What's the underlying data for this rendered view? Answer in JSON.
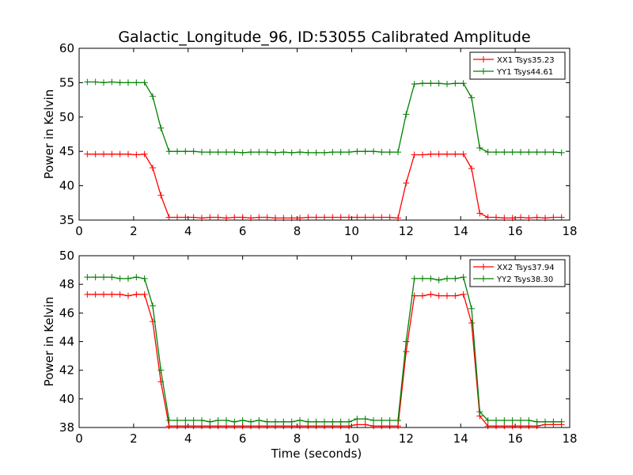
{
  "figure": {
    "title": "Galactic_Longitude_96, ID:53055 Calibrated Amplitude"
  },
  "chart_data": [
    {
      "type": "line",
      "ylabel": "Power in Kelvin",
      "xlabel": "",
      "xlim": [
        0,
        18
      ],
      "ylim": [
        35,
        60
      ],
      "x_ticks": [
        "0",
        "2",
        "4",
        "6",
        "8",
        "10",
        "12",
        "14",
        "16",
        "18"
      ],
      "y_ticks": [
        "35",
        "40",
        "45",
        "50",
        "55",
        "60"
      ],
      "legend_position": "top-right",
      "x": [
        0.3,
        0.6,
        0.9,
        1.2,
        1.5,
        1.8,
        2.1,
        2.4,
        2.7,
        3.0,
        3.3,
        3.6,
        3.9,
        4.2,
        4.5,
        4.8,
        5.1,
        5.4,
        5.7,
        6.0,
        6.3,
        6.6,
        6.9,
        7.2,
        7.5,
        7.8,
        8.1,
        8.4,
        8.7,
        9.0,
        9.3,
        9.6,
        9.9,
        10.2,
        10.5,
        10.8,
        11.1,
        11.4,
        11.7,
        12.0,
        12.3,
        12.6,
        12.9,
        13.2,
        13.5,
        13.8,
        14.1,
        14.4,
        14.7,
        15.0,
        15.3,
        15.6,
        15.9,
        16.2,
        16.5,
        16.8,
        17.1,
        17.4,
        17.7
      ],
      "series": [
        {
          "name": "XX1 Tsys35.23",
          "color": "#ff0000",
          "values": [
            44.6,
            44.6,
            44.6,
            44.6,
            44.6,
            44.6,
            44.5,
            44.6,
            42.6,
            38.6,
            35.4,
            35.4,
            35.4,
            35.4,
            35.3,
            35.4,
            35.4,
            35.3,
            35.4,
            35.4,
            35.3,
            35.4,
            35.4,
            35.3,
            35.3,
            35.3,
            35.3,
            35.4,
            35.4,
            35.4,
            35.4,
            35.4,
            35.4,
            35.4,
            35.4,
            35.4,
            35.4,
            35.4,
            35.3,
            40.4,
            44.5,
            44.5,
            44.6,
            44.6,
            44.6,
            44.6,
            44.6,
            42.5,
            36.0,
            35.4,
            35.4,
            35.3,
            35.3,
            35.4,
            35.3,
            35.4,
            35.3,
            35.4,
            35.4
          ]
        },
        {
          "name": "YY1 Tsys44.61",
          "color": "#008000",
          "values": [
            55.1,
            55.1,
            55.0,
            55.1,
            55.0,
            55.0,
            55.0,
            55.0,
            53.0,
            48.4,
            45.0,
            45.0,
            45.0,
            45.0,
            44.9,
            44.9,
            44.9,
            44.9,
            44.9,
            44.8,
            44.9,
            44.9,
            44.9,
            44.8,
            44.9,
            44.8,
            44.9,
            44.8,
            44.8,
            44.8,
            44.9,
            44.9,
            44.9,
            45.0,
            45.0,
            45.0,
            44.9,
            44.9,
            44.9,
            50.4,
            54.8,
            54.9,
            54.9,
            54.9,
            54.8,
            54.9,
            54.9,
            52.8,
            45.5,
            44.9,
            44.9,
            44.9,
            44.9,
            44.9,
            44.9,
            44.9,
            44.9,
            44.9,
            44.8
          ]
        }
      ]
    },
    {
      "type": "line",
      "ylabel": "Power in Kelvin",
      "xlabel": "Time (seconds)",
      "xlim": [
        0,
        18
      ],
      "ylim": [
        38,
        50
      ],
      "x_ticks": [
        "0",
        "2",
        "4",
        "6",
        "8",
        "10",
        "12",
        "14",
        "16",
        "18"
      ],
      "y_ticks": [
        "38",
        "40",
        "42",
        "44",
        "46",
        "48",
        "50"
      ],
      "legend_position": "top-right",
      "x": [
        0.3,
        0.6,
        0.9,
        1.2,
        1.5,
        1.8,
        2.1,
        2.4,
        2.7,
        3.0,
        3.3,
        3.6,
        3.9,
        4.2,
        4.5,
        4.8,
        5.1,
        5.4,
        5.7,
        6.0,
        6.3,
        6.6,
        6.9,
        7.2,
        7.5,
        7.8,
        8.1,
        8.4,
        8.7,
        9.0,
        9.3,
        9.6,
        9.9,
        10.2,
        10.5,
        10.8,
        11.1,
        11.4,
        11.7,
        12.0,
        12.3,
        12.6,
        12.9,
        13.2,
        13.5,
        13.8,
        14.1,
        14.4,
        14.7,
        15.0,
        15.3,
        15.6,
        15.9,
        16.2,
        16.5,
        16.8,
        17.1,
        17.4,
        17.7
      ],
      "series": [
        {
          "name": "XX2 Tsys37.94",
          "color": "#ff0000",
          "values": [
            47.3,
            47.3,
            47.3,
            47.3,
            47.3,
            47.2,
            47.3,
            47.3,
            45.4,
            41.2,
            38.1,
            38.1,
            38.1,
            38.1,
            38.1,
            38.1,
            38.1,
            38.1,
            38.1,
            38.1,
            38.1,
            38.1,
            38.1,
            38.1,
            38.1,
            38.1,
            38.1,
            38.1,
            38.1,
            38.1,
            38.1,
            38.1,
            38.1,
            38.2,
            38.2,
            38.1,
            38.1,
            38.1,
            38.1,
            43.3,
            47.2,
            47.2,
            47.3,
            47.2,
            47.2,
            47.2,
            47.3,
            45.3,
            38.8,
            38.1,
            38.1,
            38.1,
            38.1,
            38.1,
            38.1,
            38.1,
            38.2,
            38.2,
            38.2
          ]
        },
        {
          "name": "YY2 Tsys38.30",
          "color": "#008000",
          "values": [
            48.5,
            48.5,
            48.5,
            48.5,
            48.4,
            48.4,
            48.5,
            48.4,
            46.5,
            42.0,
            38.5,
            38.5,
            38.5,
            38.5,
            38.5,
            38.4,
            38.5,
            38.5,
            38.4,
            38.5,
            38.4,
            38.5,
            38.4,
            38.4,
            38.4,
            38.4,
            38.5,
            38.4,
            38.4,
            38.4,
            38.4,
            38.4,
            38.4,
            38.6,
            38.6,
            38.5,
            38.5,
            38.5,
            38.5,
            44.0,
            48.4,
            48.4,
            48.4,
            48.3,
            48.4,
            48.4,
            48.5,
            46.3,
            39.1,
            38.5,
            38.5,
            38.5,
            38.5,
            38.5,
            38.5,
            38.4,
            38.4,
            38.4,
            38.4
          ]
        }
      ]
    }
  ]
}
